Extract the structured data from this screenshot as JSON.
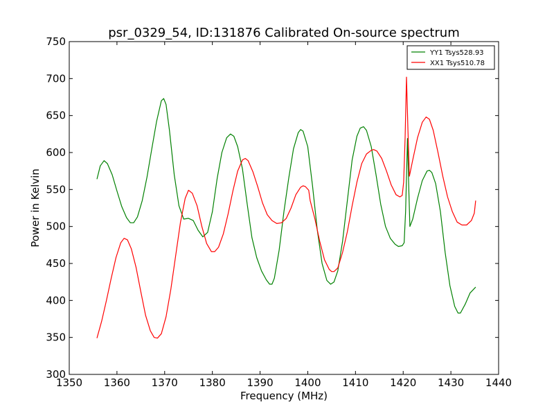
{
  "chart_data": {
    "type": "line",
    "title": "psr_0329_54, ID:131876 Calibrated On-source spectrum",
    "xlabel": "Frequency (MHz)",
    "ylabel": "Power in Kelvin",
    "xlim": [
      1350,
      1440
    ],
    "ylim": [
      300,
      750
    ],
    "xticks": [
      "1350",
      "1360",
      "1370",
      "1380",
      "1390",
      "1400",
      "1410",
      "1420",
      "1430",
      "1440"
    ],
    "yticks": [
      "300",
      "350",
      "400",
      "450",
      "500",
      "550",
      "600",
      "650",
      "700",
      "750"
    ],
    "grid": false,
    "legend_position": "top-right",
    "series": [
      {
        "name": "YY1 Tsys528.93",
        "color": "#008000",
        "points": [
          [
            1355.8,
            564
          ],
          [
            1356.5,
            582
          ],
          [
            1357.3,
            589
          ],
          [
            1358.0,
            585
          ],
          [
            1359.0,
            570
          ],
          [
            1360.0,
            548
          ],
          [
            1361.0,
            527
          ],
          [
            1362.0,
            512
          ],
          [
            1362.8,
            505
          ],
          [
            1363.5,
            505
          ],
          [
            1364.3,
            513
          ],
          [
            1365.3,
            535
          ],
          [
            1366.3,
            567
          ],
          [
            1367.3,
            605
          ],
          [
            1368.3,
            642
          ],
          [
            1369.3,
            670
          ],
          [
            1369.8,
            673
          ],
          [
            1370.3,
            665
          ],
          [
            1371.0,
            630
          ],
          [
            1372.0,
            570
          ],
          [
            1373.0,
            528
          ],
          [
            1374.0,
            510
          ],
          [
            1375.0,
            511
          ],
          [
            1376.0,
            508
          ],
          [
            1377.0,
            495
          ],
          [
            1378.0,
            486
          ],
          [
            1379.0,
            492
          ],
          [
            1380.0,
            520
          ],
          [
            1381.0,
            565
          ],
          [
            1382.0,
            600
          ],
          [
            1383.0,
            620
          ],
          [
            1383.8,
            625
          ],
          [
            1384.5,
            622
          ],
          [
            1385.3,
            608
          ],
          [
            1386.3,
            578
          ],
          [
            1387.3,
            530
          ],
          [
            1388.3,
            485
          ],
          [
            1389.3,
            458
          ],
          [
            1390.3,
            440
          ],
          [
            1391.3,
            428
          ],
          [
            1392.0,
            422
          ],
          [
            1392.5,
            422
          ],
          [
            1393.0,
            430
          ],
          [
            1394.0,
            468
          ],
          [
            1395.0,
            520
          ],
          [
            1396.0,
            565
          ],
          [
            1397.0,
            605
          ],
          [
            1398.0,
            627
          ],
          [
            1398.5,
            631
          ],
          [
            1399.0,
            629
          ],
          [
            1400.0,
            608
          ],
          [
            1401.0,
            555
          ],
          [
            1402.0,
            495
          ],
          [
            1403.0,
            450
          ],
          [
            1404.0,
            427
          ],
          [
            1404.8,
            422
          ],
          [
            1405.5,
            425
          ],
          [
            1406.3,
            440
          ],
          [
            1407.3,
            480
          ],
          [
            1408.3,
            535
          ],
          [
            1409.3,
            590
          ],
          [
            1410.3,
            622
          ],
          [
            1411.0,
            633
          ],
          [
            1411.7,
            635
          ],
          [
            1412.3,
            630
          ],
          [
            1413.3,
            608
          ],
          [
            1414.3,
            570
          ],
          [
            1415.3,
            530
          ],
          [
            1416.3,
            500
          ],
          [
            1417.3,
            484
          ],
          [
            1418.3,
            476
          ],
          [
            1419.0,
            473
          ],
          [
            1419.8,
            474
          ],
          [
            1420.2,
            478
          ],
          [
            1420.5,
            520
          ],
          [
            1420.9,
            619
          ],
          [
            1421.2,
            545
          ],
          [
            1421.4,
            500
          ],
          [
            1422.0,
            510
          ],
          [
            1423.0,
            538
          ],
          [
            1424.0,
            562
          ],
          [
            1425.0,
            575
          ],
          [
            1425.5,
            576
          ],
          [
            1426.0,
            573
          ],
          [
            1426.8,
            558
          ],
          [
            1427.8,
            520
          ],
          [
            1428.8,
            465
          ],
          [
            1429.8,
            420
          ],
          [
            1430.8,
            392
          ],
          [
            1431.5,
            383
          ],
          [
            1432.0,
            383
          ],
          [
            1433.0,
            395
          ],
          [
            1434.0,
            410
          ],
          [
            1435.2,
            418
          ]
        ]
      },
      {
        "name": "XX1 Tsys510.78",
        "color": "#ff0000",
        "points": [
          [
            1355.8,
            349
          ],
          [
            1356.8,
            372
          ],
          [
            1357.8,
            400
          ],
          [
            1358.8,
            430
          ],
          [
            1359.8,
            458
          ],
          [
            1360.8,
            478
          ],
          [
            1361.5,
            484
          ],
          [
            1362.2,
            482
          ],
          [
            1363.0,
            470
          ],
          [
            1364.0,
            445
          ],
          [
            1365.0,
            412
          ],
          [
            1366.0,
            380
          ],
          [
            1367.0,
            359
          ],
          [
            1367.8,
            350
          ],
          [
            1368.5,
            349
          ],
          [
            1369.3,
            355
          ],
          [
            1370.3,
            378
          ],
          [
            1371.3,
            415
          ],
          [
            1372.3,
            460
          ],
          [
            1373.3,
            505
          ],
          [
            1374.3,
            538
          ],
          [
            1375.0,
            549
          ],
          [
            1375.8,
            545
          ],
          [
            1376.8,
            528
          ],
          [
            1377.8,
            500
          ],
          [
            1378.8,
            477
          ],
          [
            1379.8,
            466
          ],
          [
            1380.5,
            466
          ],
          [
            1381.3,
            472
          ],
          [
            1382.3,
            490
          ],
          [
            1383.3,
            517
          ],
          [
            1384.3,
            548
          ],
          [
            1385.3,
            575
          ],
          [
            1386.3,
            590
          ],
          [
            1386.9,
            592
          ],
          [
            1387.5,
            589
          ],
          [
            1388.5,
            574
          ],
          [
            1389.5,
            554
          ],
          [
            1390.5,
            532
          ],
          [
            1391.5,
            516
          ],
          [
            1392.5,
            508
          ],
          [
            1393.5,
            504
          ],
          [
            1394.5,
            505
          ],
          [
            1395.5,
            511
          ],
          [
            1396.5,
            525
          ],
          [
            1397.5,
            543
          ],
          [
            1398.5,
            553
          ],
          [
            1399.0,
            555
          ],
          [
            1399.5,
            554
          ],
          [
            1400.2,
            549
          ],
          [
            1400.5,
            535
          ],
          [
            1401.5,
            510
          ],
          [
            1402.5,
            480
          ],
          [
            1403.5,
            455
          ],
          [
            1404.5,
            442
          ],
          [
            1405.0,
            439
          ],
          [
            1405.5,
            439
          ],
          [
            1406.3,
            444
          ],
          [
            1407.3,
            465
          ],
          [
            1408.3,
            493
          ],
          [
            1409.3,
            528
          ],
          [
            1410.3,
            560
          ],
          [
            1411.3,
            585
          ],
          [
            1412.3,
            598
          ],
          [
            1413.3,
            603
          ],
          [
            1413.8,
            604
          ],
          [
            1414.5,
            602
          ],
          [
            1415.5,
            592
          ],
          [
            1416.5,
            575
          ],
          [
            1417.5,
            556
          ],
          [
            1418.5,
            543
          ],
          [
            1419.3,
            540
          ],
          [
            1419.8,
            542
          ],
          [
            1420.1,
            560
          ],
          [
            1420.4,
            620
          ],
          [
            1420.7,
            702
          ],
          [
            1421.0,
            630
          ],
          [
            1421.3,
            568
          ],
          [
            1422.0,
            590
          ],
          [
            1423.0,
            620
          ],
          [
            1424.0,
            641
          ],
          [
            1424.8,
            648
          ],
          [
            1425.5,
            645
          ],
          [
            1426.3,
            630
          ],
          [
            1427.3,
            600
          ],
          [
            1428.3,
            568
          ],
          [
            1429.3,
            540
          ],
          [
            1430.3,
            520
          ],
          [
            1431.3,
            506
          ],
          [
            1432.3,
            502
          ],
          [
            1433.3,
            502
          ],
          [
            1434.3,
            508
          ],
          [
            1434.9,
            518
          ],
          [
            1435.2,
            535
          ]
        ]
      }
    ]
  }
}
